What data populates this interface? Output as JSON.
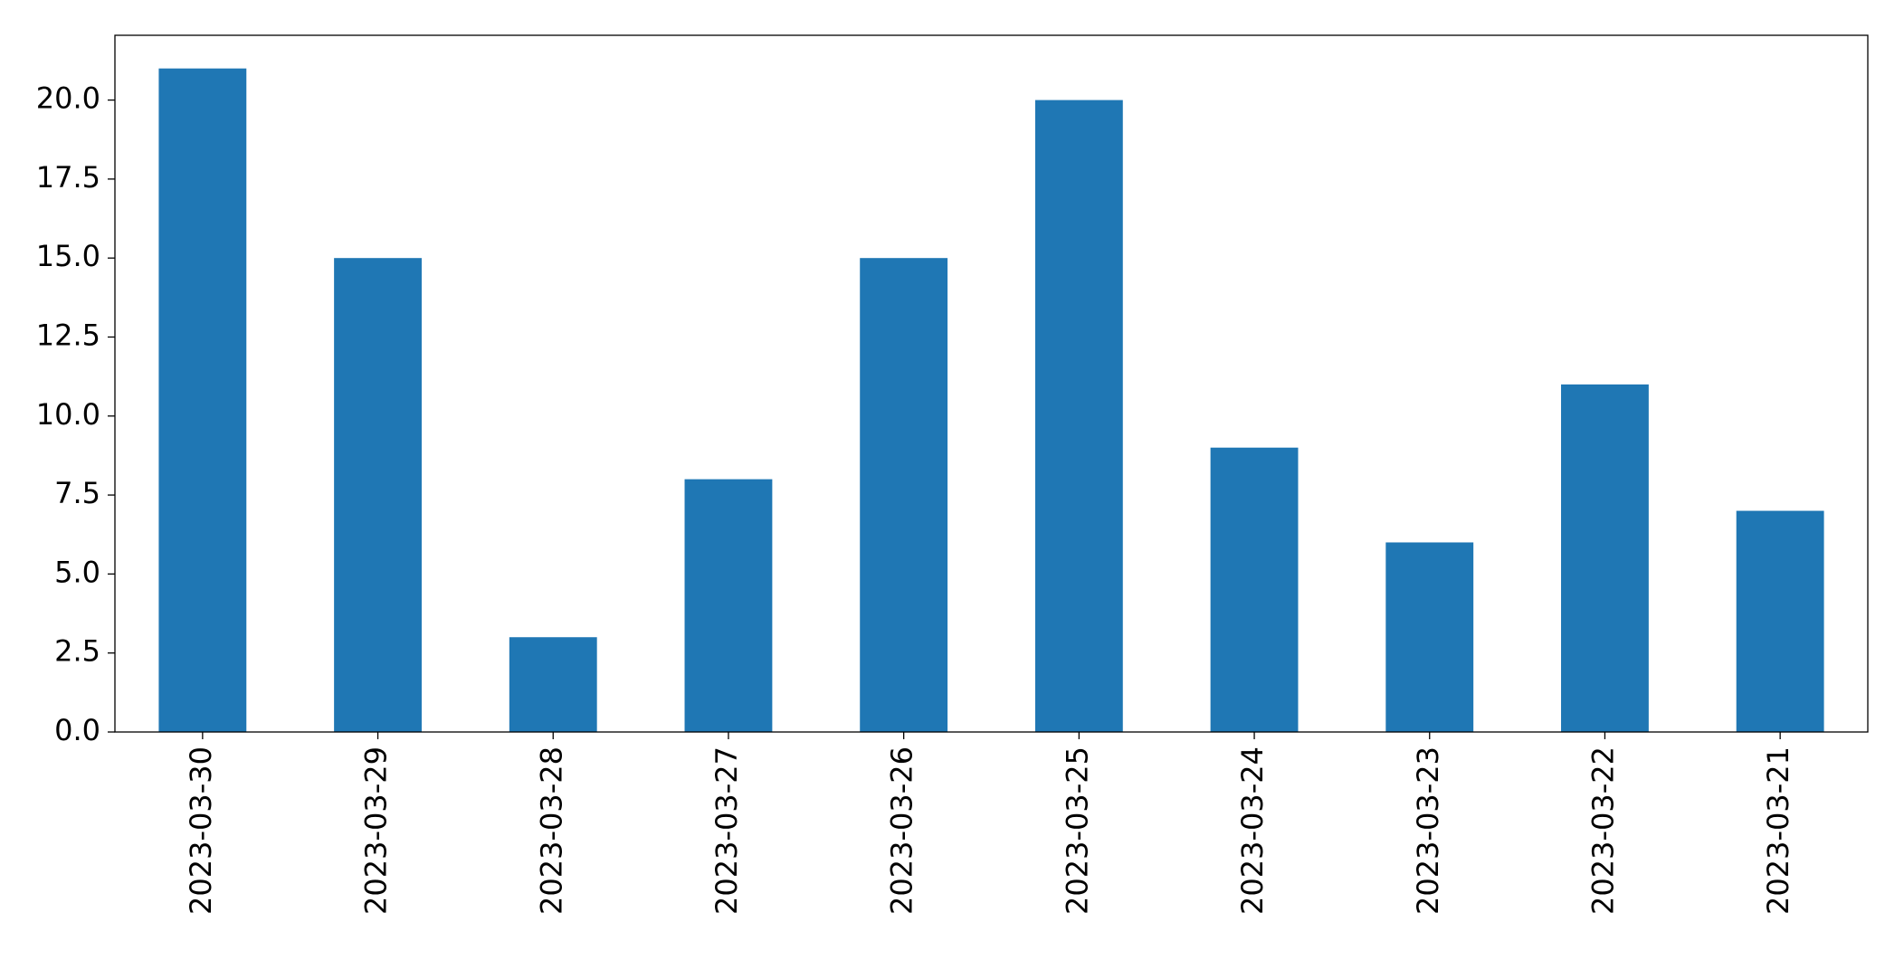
{
  "chart_data": {
    "type": "bar",
    "categories": [
      "2023-03-30",
      "2023-03-29",
      "2023-03-28",
      "2023-03-27",
      "2023-03-26",
      "2023-03-25",
      "2023-03-24",
      "2023-03-23",
      "2023-03-22",
      "2023-03-21"
    ],
    "values": [
      21,
      15,
      3,
      8,
      15,
      20,
      9,
      6,
      11,
      7
    ],
    "color": "#1f77b4",
    "ylim": [
      0,
      22.05
    ],
    "yticks": [
      {
        "value": 0,
        "label": "0.0"
      },
      2.5,
      {
        "value": 5,
        "label": "5.0"
      },
      7.5,
      {
        "value": 10,
        "label": "10.0"
      },
      12.5,
      {
        "value": 15,
        "label": "15.0"
      },
      17.5,
      {
        "value": 20,
        "label": "20.0"
      }
    ],
    "grid": false
  }
}
